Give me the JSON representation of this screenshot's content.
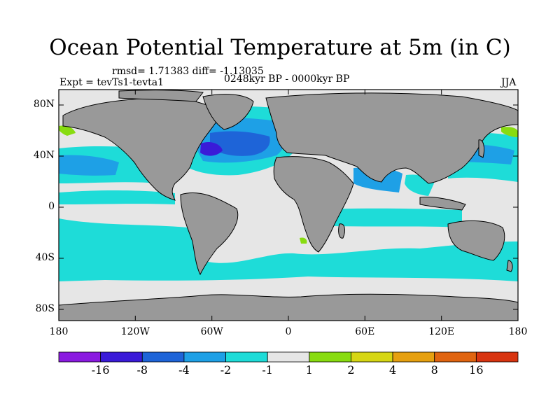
{
  "figure": {
    "title": "Ocean Potential Temperature at 5m (in C)",
    "stats": "rmsd= 1.71383  diff= -1.13035",
    "experiment": "Expt = tevTs1-tevta1",
    "period": "0248kyr BP - 0000kyr BP",
    "season": "JJA"
  },
  "axes": {
    "lat_ticks": [
      "80N",
      "40N",
      "0",
      "40S",
      "80S"
    ],
    "lon_ticks": [
      "180",
      "120W",
      "60W",
      "0",
      "60E",
      "120E",
      "180"
    ]
  },
  "colorbar": {
    "labels": [
      "-16",
      "-8",
      "-4",
      "-2",
      "-1",
      "1",
      "2",
      "4",
      "8",
      "16"
    ],
    "colors": [
      "#8a1ae0",
      "#3a1ad8",
      "#1e64d8",
      "#1ea0e6",
      "#1edcd8",
      "#e6e6e6",
      "#88dc10",
      "#d6d614",
      "#e6a010",
      "#e06410",
      "#d83410"
    ]
  },
  "map_colors": {
    "land": "#999999",
    "coast": "#000000",
    "ocean_neutral": "#e6e6e6",
    "cool_light": "#1edcd8",
    "cool_mid": "#1ea0e6",
    "cool_strong": "#1e64d8",
    "cool_extreme": "#3a1ad8",
    "warm": "#88dc10"
  }
}
